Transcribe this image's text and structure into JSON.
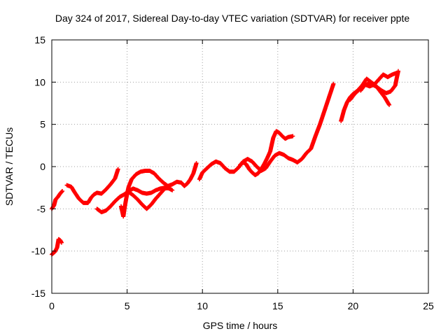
{
  "chart_data": {
    "type": "scatter",
    "title": "Day 324 of 2017, Sidereal Day-to-day VTEC variation (SDTVAR) for receiver ppte",
    "xlabel": "GPS time / hours",
    "ylabel": "SDTVAR / TECUs",
    "xlim": [
      0,
      25
    ],
    "ylim": [
      -15,
      15
    ],
    "xticks": [
      0,
      5,
      10,
      15,
      20,
      25
    ],
    "yticks": [
      -15,
      -10,
      -5,
      0,
      5,
      10,
      15
    ],
    "grid": true,
    "marker": "+",
    "series_color": "#ff0000",
    "series": [
      {
        "name": "s1",
        "points": [
          [
            0.0,
            -10.4
          ],
          [
            0.2,
            -10.1
          ],
          [
            0.35,
            -9.6
          ],
          [
            0.45,
            -8.6
          ],
          [
            0.55,
            -8.7
          ],
          [
            0.65,
            -9.0
          ]
        ]
      },
      {
        "name": "s2",
        "points": [
          [
            0.0,
            -5.0
          ],
          [
            0.15,
            -4.6
          ],
          [
            0.25,
            -3.9
          ],
          [
            0.4,
            -3.6
          ],
          [
            0.55,
            -3.2
          ],
          [
            0.7,
            -2.9
          ]
        ]
      },
      {
        "name": "s3",
        "points": [
          [
            1.0,
            -2.2
          ],
          [
            1.3,
            -2.4
          ],
          [
            1.5,
            -3.0
          ],
          [
            1.8,
            -3.8
          ],
          [
            2.1,
            -4.3
          ],
          [
            2.4,
            -4.3
          ],
          [
            2.6,
            -3.7
          ],
          [
            2.8,
            -3.3
          ],
          [
            3.0,
            -3.1
          ],
          [
            3.3,
            -3.2
          ],
          [
            3.6,
            -2.7
          ],
          [
            3.9,
            -2.1
          ],
          [
            4.2,
            -1.4
          ],
          [
            4.4,
            -0.3
          ]
        ]
      },
      {
        "name": "s4",
        "points": [
          [
            3.0,
            -5.0
          ],
          [
            3.3,
            -5.4
          ],
          [
            3.6,
            -5.2
          ],
          [
            3.9,
            -4.7
          ],
          [
            4.2,
            -4.1
          ],
          [
            4.5,
            -3.6
          ],
          [
            4.8,
            -3.3
          ],
          [
            5.1,
            -2.9
          ],
          [
            5.4,
            -2.6
          ],
          [
            5.7,
            -2.8
          ],
          [
            6.0,
            -3.1
          ],
          [
            6.3,
            -3.2
          ],
          [
            6.6,
            -3.1
          ],
          [
            6.9,
            -2.8
          ],
          [
            7.2,
            -2.6
          ],
          [
            7.5,
            -2.5
          ],
          [
            7.8,
            -2.6
          ],
          [
            8.0,
            -2.8
          ]
        ]
      },
      {
        "name": "s5",
        "points": [
          [
            4.6,
            -4.7
          ],
          [
            4.75,
            -5.9
          ],
          [
            4.85,
            -4.7
          ],
          [
            5.0,
            -3.2
          ],
          [
            5.1,
            -2.4
          ],
          [
            5.3,
            -1.5
          ],
          [
            5.6,
            -0.9
          ],
          [
            5.9,
            -0.6
          ],
          [
            6.2,
            -0.5
          ],
          [
            6.5,
            -0.5
          ],
          [
            6.8,
            -0.8
          ],
          [
            7.1,
            -1.4
          ],
          [
            7.4,
            -1.9
          ],
          [
            7.7,
            -2.3
          ],
          [
            8.0,
            -2.1
          ],
          [
            8.3,
            -1.8
          ],
          [
            8.6,
            -1.9
          ],
          [
            8.8,
            -2.3
          ],
          [
            9.0,
            -2.0
          ],
          [
            9.2,
            -1.5
          ],
          [
            9.4,
            -0.8
          ],
          [
            9.6,
            0.4
          ]
        ]
      },
      {
        "name": "s6",
        "points": [
          [
            5.1,
            -3.0
          ],
          [
            5.4,
            -3.4
          ],
          [
            5.7,
            -3.9
          ],
          [
            6.0,
            -4.5
          ],
          [
            6.3,
            -5.0
          ],
          [
            6.6,
            -4.5
          ],
          [
            6.9,
            -3.8
          ],
          [
            7.2,
            -3.2
          ],
          [
            7.5,
            -2.6
          ],
          [
            7.8,
            -2.5
          ]
        ]
      },
      {
        "name": "s7",
        "points": [
          [
            9.8,
            -1.5
          ],
          [
            10.0,
            -0.7
          ],
          [
            10.3,
            -0.2
          ],
          [
            10.6,
            0.3
          ],
          [
            10.9,
            0.6
          ],
          [
            11.2,
            0.4
          ],
          [
            11.5,
            -0.2
          ],
          [
            11.8,
            -0.6
          ],
          [
            12.1,
            -0.6
          ],
          [
            12.4,
            -0.1
          ],
          [
            12.7,
            0.6
          ],
          [
            13.0,
            0.9
          ],
          [
            13.3,
            0.6
          ],
          [
            13.6,
            0.0
          ],
          [
            13.9,
            -0.5
          ],
          [
            14.2,
            -0.2
          ],
          [
            14.5,
            0.6
          ],
          [
            14.8,
            1.3
          ],
          [
            15.1,
            1.6
          ],
          [
            15.4,
            1.4
          ],
          [
            15.7,
            1.0
          ],
          [
            16.0,
            0.8
          ],
          [
            16.3,
            0.5
          ],
          [
            16.6,
            0.9
          ],
          [
            16.9,
            1.6
          ],
          [
            17.2,
            2.1
          ],
          [
            17.5,
            3.6
          ],
          [
            17.8,
            5.0
          ],
          [
            18.1,
            6.6
          ],
          [
            18.4,
            8.2
          ],
          [
            18.7,
            9.8
          ]
        ]
      },
      {
        "name": "s8",
        "points": [
          [
            12.5,
            0.2
          ],
          [
            12.7,
            0.5
          ],
          [
            12.9,
            0.3
          ],
          [
            13.1,
            -0.3
          ],
          [
            13.3,
            -0.7
          ],
          [
            13.5,
            -1.0
          ],
          [
            13.7,
            -0.8
          ],
          [
            13.9,
            -0.3
          ],
          [
            14.1,
            0.3
          ],
          [
            14.3,
            1.0
          ],
          [
            14.5,
            1.8
          ],
          [
            14.7,
            3.4
          ],
          [
            14.9,
            4.2
          ],
          [
            15.1,
            4.0
          ],
          [
            15.3,
            3.6
          ],
          [
            15.5,
            3.3
          ],
          [
            15.7,
            3.5
          ],
          [
            16.0,
            3.6
          ]
        ]
      },
      {
        "name": "s9",
        "points": [
          [
            19.2,
            5.4
          ],
          [
            19.4,
            6.7
          ],
          [
            19.6,
            7.6
          ],
          [
            19.8,
            8.2
          ],
          [
            20.0,
            8.6
          ],
          [
            20.3,
            9.0
          ],
          [
            20.6,
            9.6
          ],
          [
            20.9,
            10.4
          ],
          [
            21.2,
            10.0
          ],
          [
            21.5,
            9.6
          ],
          [
            21.8,
            8.9
          ],
          [
            22.1,
            8.2
          ],
          [
            22.4,
            7.3
          ]
        ]
      },
      {
        "name": "s10",
        "points": [
          [
            19.8,
            7.9
          ],
          [
            20.1,
            8.6
          ],
          [
            20.4,
            9.1
          ],
          [
            20.7,
            9.6
          ],
          [
            21.0,
            9.8
          ],
          [
            21.3,
            9.7
          ],
          [
            21.6,
            9.4
          ],
          [
            21.9,
            9.0
          ],
          [
            22.2,
            8.7
          ],
          [
            22.5,
            8.9
          ],
          [
            22.8,
            9.6
          ],
          [
            22.9,
            10.5
          ],
          [
            23.0,
            11.3
          ]
        ]
      },
      {
        "name": "s11",
        "points": [
          [
            20.5,
            9.0
          ],
          [
            20.8,
            9.7
          ],
          [
            21.1,
            9.5
          ],
          [
            21.4,
            9.7
          ],
          [
            21.7,
            10.3
          ],
          [
            22.0,
            10.9
          ],
          [
            22.3,
            10.6
          ],
          [
            22.6,
            10.9
          ],
          [
            22.9,
            11.1
          ]
        ]
      }
    ]
  }
}
